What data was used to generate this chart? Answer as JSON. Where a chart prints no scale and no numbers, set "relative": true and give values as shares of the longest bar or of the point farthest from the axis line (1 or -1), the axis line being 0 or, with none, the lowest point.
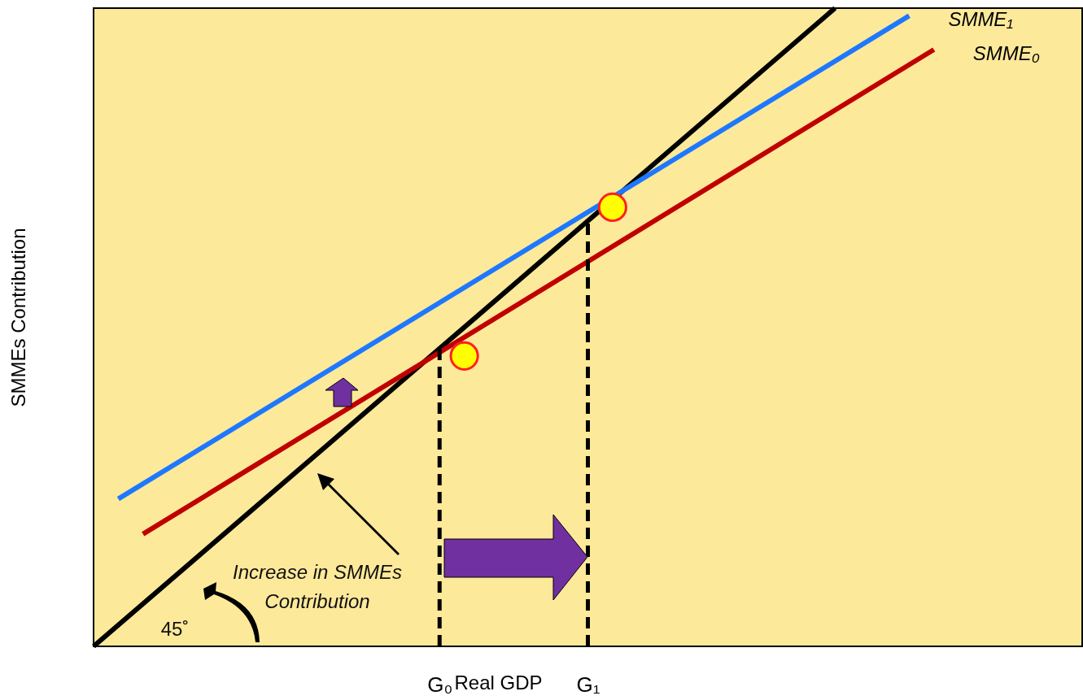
{
  "chart_data": {
    "type": "line",
    "relative": true,
    "xlabel": "Real GDP",
    "ylabel": "SMMEs Contribution",
    "categories": [
      null,
      null,
      null,
      null,
      null,
      null,
      null,
      null,
      null,
      null,
      null,
      null,
      null,
      null,
      "G₀",
      null,
      null,
      null,
      null,
      null,
      "G₁",
      null,
      null,
      null,
      null,
      null,
      null,
      null,
      null,
      null,
      null,
      null,
      null,
      null,
      null,
      null,
      null,
      null,
      null,
      null,
      null
    ],
    "grid": false,
    "legend": false,
    "marker": "none",
    "line_style": "solid",
    "annotations": [
      "Increase in SMMEs\nContribution",
      "45˚"
    ],
    "ref_lines": [
      {
        "axis": "x",
        "value": "G₀",
        "color": "#000000",
        "line_style": "dashed"
      },
      {
        "axis": "x",
        "value": "G₁",
        "color": "#000000",
        "line_style": "dashed"
      }
    ],
    "series": [
      {
        "color": "#000000",
        "values": [
          0,
          null,
          null,
          null,
          null,
          null,
          null,
          null,
          null,
          null,
          null,
          null,
          null,
          null,
          null,
          null,
          null,
          null,
          null,
          null,
          null,
          null,
          null,
          null,
          null,
          null,
          null,
          null,
          null,
          null,
          1,
          null,
          null,
          null,
          null,
          null,
          null,
          null,
          null,
          null,
          null
        ]
      },
      {
        "name": "SMME₁",
        "color": "#1e78ff",
        "values": [
          null,
          0.231,
          null,
          null,
          null,
          null,
          null,
          null,
          null,
          null,
          null,
          null,
          null,
          null,
          null,
          null,
          null,
          null,
          null,
          null,
          null,
          null,
          null,
          null,
          null,
          null,
          null,
          null,
          null,
          null,
          null,
          null,
          null,
          0.988,
          null,
          null,
          null,
          null,
          null,
          null,
          null
        ]
      },
      {
        "name": "SMME₀",
        "color": "#c00000",
        "values": [
          null,
          null,
          0.176,
          null,
          null,
          null,
          null,
          null,
          null,
          null,
          null,
          null,
          null,
          null,
          null,
          null,
          null,
          null,
          null,
          null,
          null,
          null,
          null,
          null,
          null,
          null,
          null,
          null,
          null,
          null,
          null,
          null,
          null,
          null,
          0.935,
          null,
          null,
          null,
          null,
          null,
          null
        ]
      },
      {
        "type": "scatter",
        "color": "#ffff00",
        "marker": "circle",
        "values": [
          null,
          null,
          null,
          null,
          null,
          null,
          null,
          null,
          null,
          null,
          null,
          null,
          null,
          null,
          null,
          0.455,
          null,
          null,
          null,
          null,
          null,
          0.688,
          null,
          null,
          null,
          null,
          null,
          null,
          null,
          null,
          null,
          null,
          null,
          null,
          null,
          null,
          null,
          null,
          null,
          null,
          null
        ]
      }
    ]
  }
}
